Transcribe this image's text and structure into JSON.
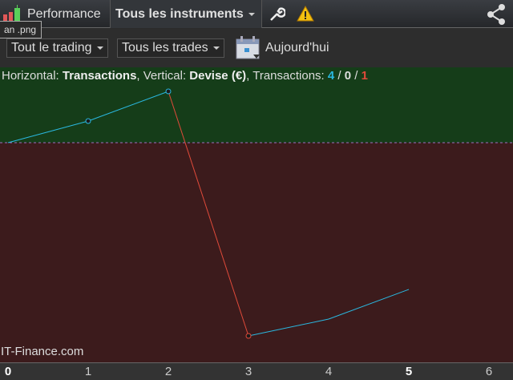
{
  "toolbar": {
    "title": "Performance",
    "instrument_select": "Tous les instruments",
    "icons": [
      "candlestick-icon",
      "wrench-icon",
      "warning-icon",
      "share-icon"
    ]
  },
  "tooltip": "an .png",
  "filters": {
    "trading_select": "Tout le trading",
    "trades_select": "Tous les trades",
    "date_label": "Aujourd'hui"
  },
  "info": {
    "h_label": "Horizontal: ",
    "h_value": "Transactions",
    "v_label": ", Vertical: ",
    "v_value": "Devise (€)",
    "t_label": ", Transactions: ",
    "win": "4",
    "sep1": " / ",
    "even": "0",
    "sep2": " / ",
    "loss": "1"
  },
  "brand": "IT-Finance.com",
  "colors": {
    "profit_bg": "#153d19",
    "loss_bg": "#3c1b1c",
    "gain_line": "#2ab8e0",
    "loss_line": "#e04a3a",
    "win": "#2ab8e0",
    "loss": "#e04a3a"
  },
  "chart_data": {
    "type": "line",
    "xlabel": "Transactions",
    "ylabel": "Devise (€)",
    "x": [
      0,
      1,
      2,
      3,
      4,
      5
    ],
    "y": [
      0,
      27,
      64,
      -241,
      -220,
      -183
    ],
    "xlim": [
      0,
      6.3
    ],
    "x_ticks": [
      "0",
      "1",
      "2",
      "3",
      "4",
      "5",
      "6"
    ],
    "bold_ticks": [
      "0",
      "5"
    ],
    "zero_line": "dashed"
  }
}
